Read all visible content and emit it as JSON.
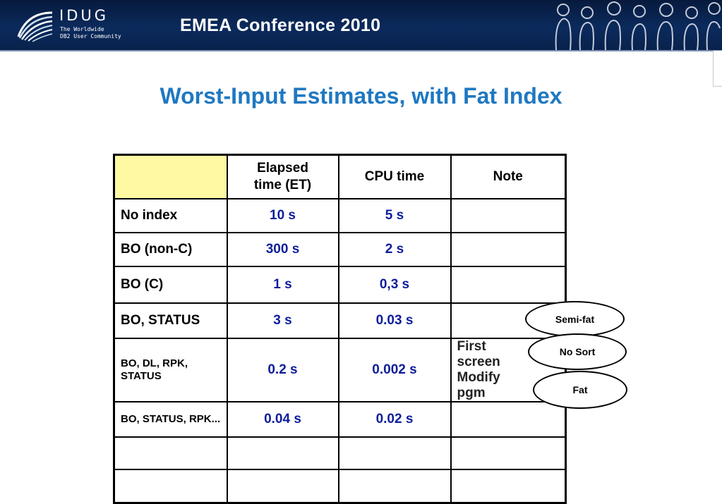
{
  "header": {
    "logo_name": "IDUG",
    "logo_tagline_1": "The Worldwide",
    "logo_tagline_2": "DB2 User Community",
    "conference": "EMEA Conference 2010"
  },
  "slide": {
    "title": "Worst-Input Estimates, with Fat Index"
  },
  "table": {
    "headers": [
      "",
      "Elapsed time (ET)",
      "CPU time",
      "Note"
    ],
    "rows": [
      {
        "label": "No index",
        "elapsed": "10 s",
        "cpu": "5 s",
        "note": ""
      },
      {
        "label": "BO (non-C)",
        "elapsed": "300 s",
        "cpu": "2 s",
        "note": ""
      },
      {
        "label": "BO (C)",
        "elapsed": "1 s",
        "cpu": "0,3 s",
        "note": ""
      },
      {
        "label": "BO, STATUS",
        "elapsed": "3 s",
        "cpu": "0.03 s",
        "note": ""
      },
      {
        "label": "BO, DL, RPK, STATUS",
        "elapsed": "0.2 s",
        "cpu": "0.002 s",
        "note": "First screen Modify pgm"
      },
      {
        "label": "BO, STATUS, RPK...",
        "elapsed": "0.04 s",
        "cpu": "0.02 s",
        "note": ""
      },
      {
        "label": "",
        "elapsed": "",
        "cpu": "",
        "note": ""
      },
      {
        "label": "",
        "elapsed": "",
        "cpu": "",
        "note": ""
      }
    ]
  },
  "callouts": [
    "Semi-fat",
    "No Sort",
    "Fat"
  ],
  "colors": {
    "banner": "#0b2a5c",
    "title": "#1f78c1",
    "value_text": "#0d1d9a",
    "header_corner": "#fff9a3"
  },
  "icons": {
    "logo": "idug-globe-icon",
    "banner_image": "crowd-silhouette-icon"
  }
}
